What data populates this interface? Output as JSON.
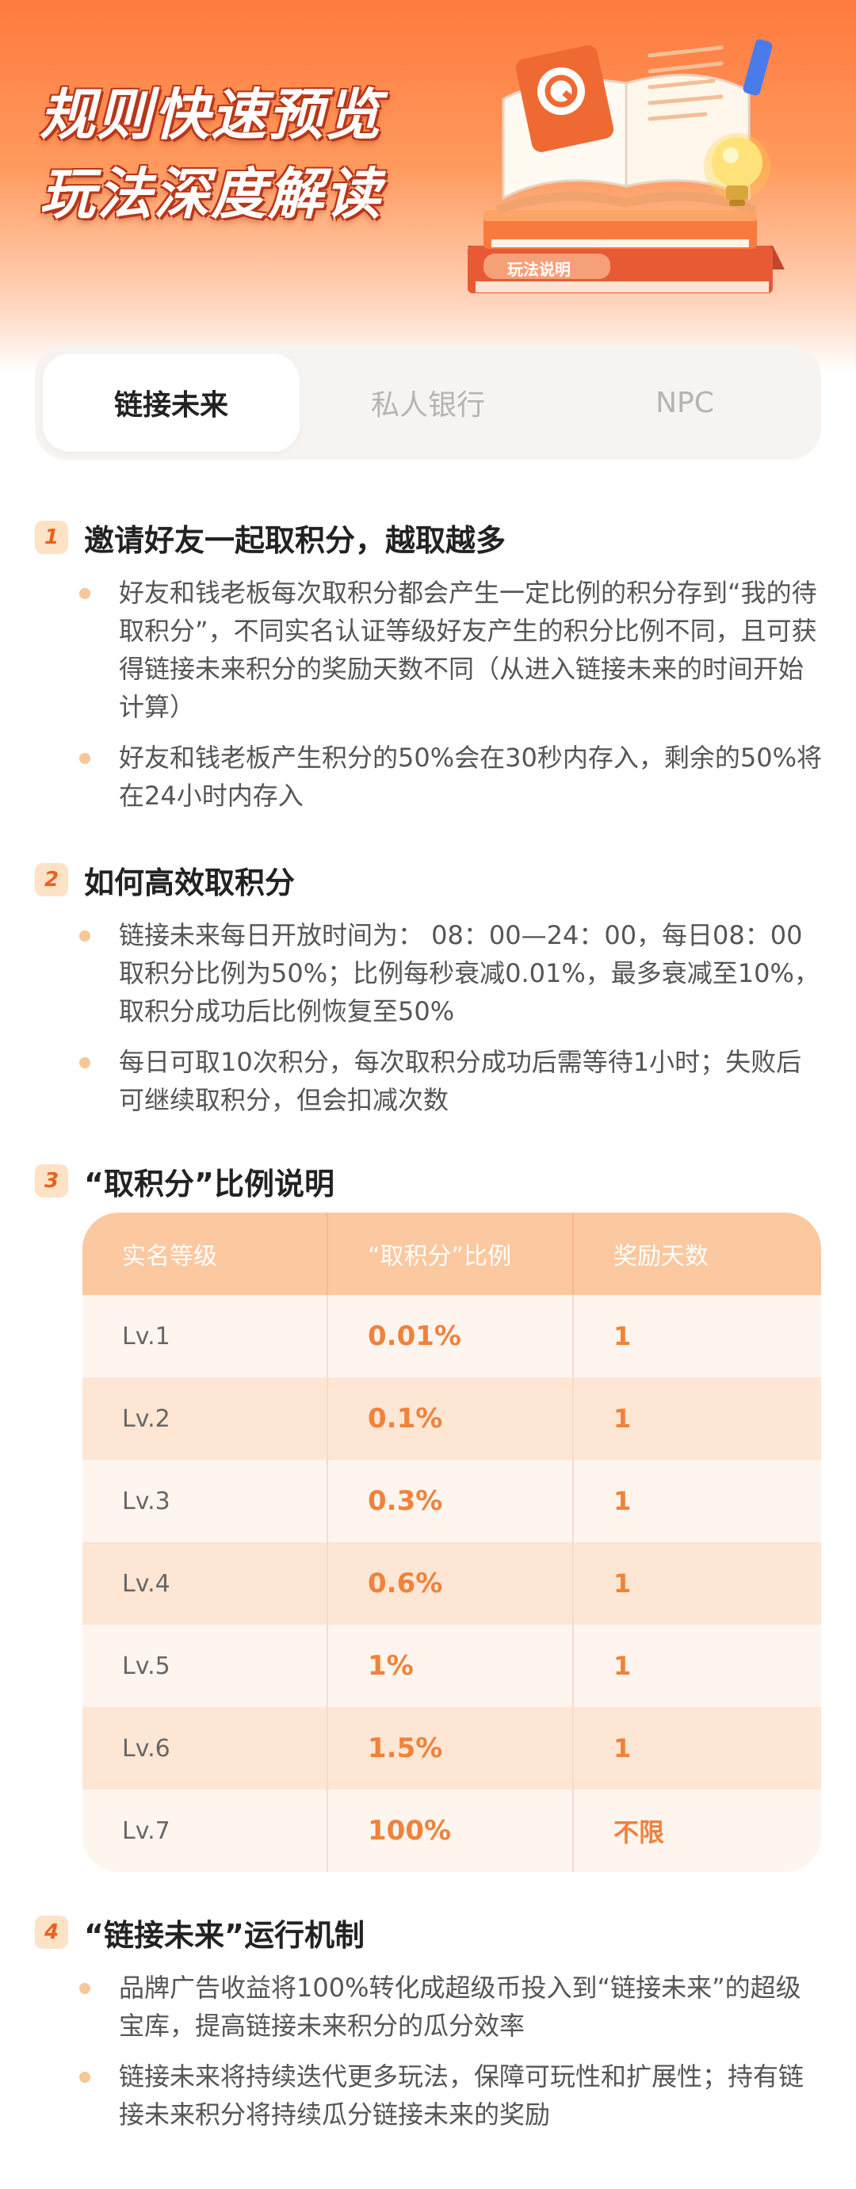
{
  "hero": {
    "title_line1": "规则快速预览",
    "title_line2": "玩法深度解读",
    "book_label": "玩法说明"
  },
  "tabs": [
    {
      "label": "链接未来",
      "active": true
    },
    {
      "label": "私人银行",
      "active": false
    },
    {
      "label": "NPC",
      "active": false
    }
  ],
  "sections": [
    {
      "num": "1",
      "title": "邀请好友一起取积分，越取越多",
      "bullets": [
        "好友和钱老板每次取积分都会产生一定比例的积分存到“我的待取积分”，不同实名认证等级好友产生的积分比例不同，且可获得链接未来积分的奖励天数不同（从进入链接未来的时间开始计算）",
        "好友和钱老板产生积分的50%会在30秒内存入，剩余的50%将在24小时内存入"
      ]
    },
    {
      "num": "2",
      "title": "如何高效取积分",
      "bullets": [
        "链接未来每日开放时间为： 08：00—24：00，每日08：00取积分比例为50%；比例每秒衰减0.01%，最多衰减至10%，取积分成功后比例恢复至50%",
        "每日可取10次积分，每次取积分成功后需等待1小时；失败后可继续取积分，但会扣减次数"
      ]
    },
    {
      "num": "3",
      "title": "“取积分”比例说明"
    },
    {
      "num": "4",
      "title": "“链接未来”运行机制",
      "bullets": [
        "品牌广告收益将100%转化成超级币投入到“链接未来”的超级宝库，提高链接未来积分的瓜分效率",
        "链接未来将持续迭代更多玩法，保障可玩性和扩展性；持有链接未来积分将持续瓜分链接未来的奖励"
      ]
    }
  ],
  "table": {
    "headers": [
      "实名等级",
      "“取积分”比例",
      "奖励天数"
    ],
    "rows": [
      [
        "Lv.1",
        "0.01%",
        "1"
      ],
      [
        "Lv.2",
        "0.1%",
        "1"
      ],
      [
        "Lv.3",
        "0.3%",
        "1"
      ],
      [
        "Lv.4",
        "0.6%",
        "1"
      ],
      [
        "Lv.5",
        "1%",
        "1"
      ],
      [
        "Lv.6",
        "1.5%",
        "1"
      ],
      [
        "Lv.7",
        "100%",
        "不限"
      ]
    ]
  },
  "colors": {
    "accent": "#f0823a",
    "hero_top": "#ff7a3e",
    "table_head": "#fbc8a0",
    "bullet_dot": "#f5c79b"
  }
}
